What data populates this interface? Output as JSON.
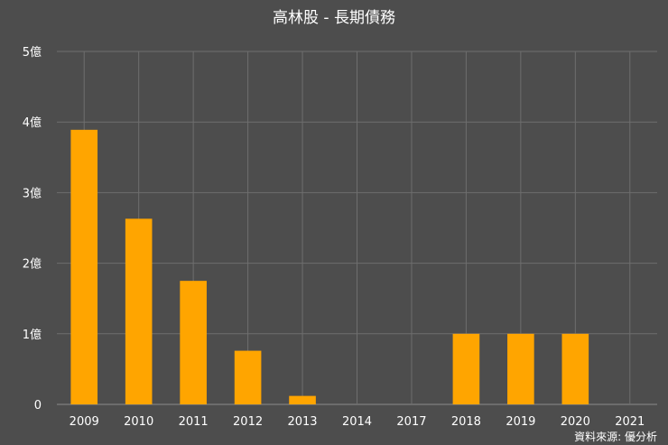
{
  "chart_data": {
    "type": "bar",
    "title": "高林股 - 長期債務",
    "categories": [
      "2009",
      "2010",
      "2011",
      "2012",
      "2013",
      "2014",
      "2017",
      "2018",
      "2019",
      "2020",
      "2021"
    ],
    "values": [
      3.89,
      2.63,
      1.75,
      0.76,
      0.12,
      0,
      0,
      1.0,
      1.0,
      1.0,
      0
    ],
    "unit": "億",
    "ylim": [
      0,
      5
    ],
    "y_ticks": [
      {
        "value": 0,
        "label": "0"
      },
      {
        "value": 1,
        "label": "1億"
      },
      {
        "value": 2,
        "label": "2億"
      },
      {
        "value": 3,
        "label": "3億"
      },
      {
        "value": 4,
        "label": "4億"
      },
      {
        "value": 5,
        "label": "5億"
      }
    ],
    "grid": true,
    "bar_color": "#ffa500",
    "background_color": "#4d4d4d"
  },
  "source": "資料來源: 優分析"
}
